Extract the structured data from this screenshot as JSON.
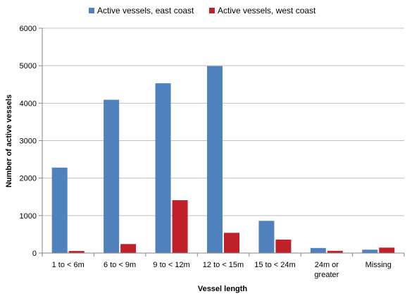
{
  "chart_data": {
    "type": "bar",
    "title": "",
    "xlabel": "Vessel length",
    "ylabel": "Number of active vessels",
    "ylim": [
      0,
      6000
    ],
    "yticks": [
      0,
      1000,
      2000,
      3000,
      4000,
      5000,
      6000
    ],
    "grid": true,
    "legend_position": "top",
    "categories": [
      [
        "1 to < 6m"
      ],
      [
        "6 to < 9m"
      ],
      [
        "9 to < 12m"
      ],
      [
        "12 to < 15m"
      ],
      [
        "15 to < 24m"
      ],
      [
        "24m or",
        "greater"
      ],
      [
        "Missing"
      ]
    ],
    "series": [
      {
        "name": "Active vessels, east coast",
        "color": "#4F81BD",
        "values": [
          2280,
          4090,
          4530,
          4990,
          860,
          135,
          90
        ]
      },
      {
        "name": "Active vessels, west coast",
        "color": "#C0202A",
        "values": [
          55,
          240,
          1410,
          540,
          360,
          60,
          145
        ]
      }
    ]
  }
}
